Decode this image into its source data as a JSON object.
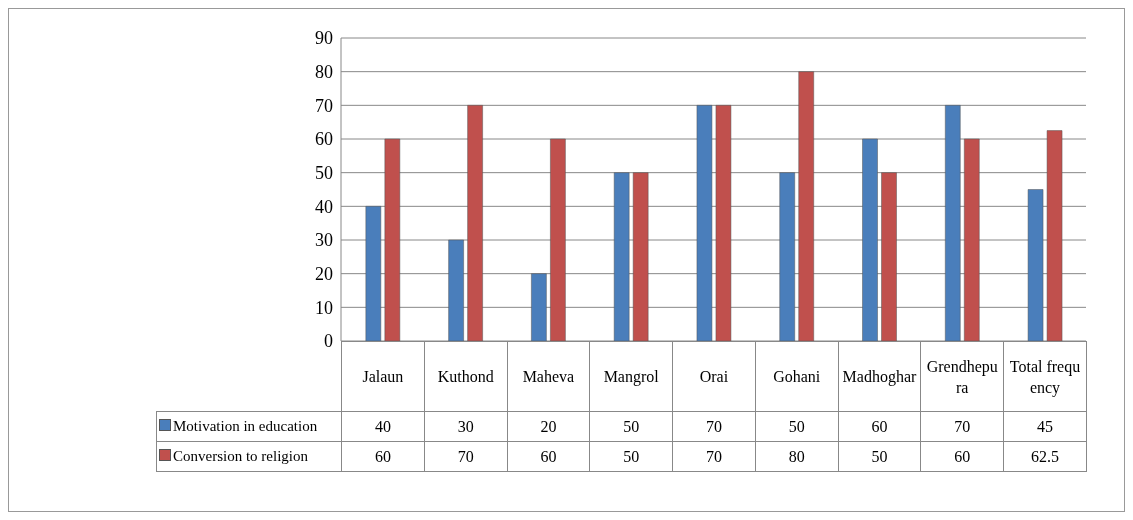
{
  "chart_data": {
    "type": "bar",
    "categories": [
      "Jalaun",
      "Kuthond",
      "Maheva",
      "Mangrol",
      "Orai",
      "Gohani",
      "Madhoghar",
      "Grendhepura",
      "Total frequency"
    ],
    "series": [
      {
        "name": "Motivation in education",
        "color": "#4a7ebb",
        "values": [
          40,
          30,
          20,
          50,
          70,
          50,
          60,
          70,
          45
        ]
      },
      {
        "name": "Conversion to religion",
        "color": "#c0504d",
        "values": [
          60,
          70,
          60,
          50,
          70,
          80,
          50,
          60,
          62.5
        ]
      }
    ],
    "ylim": [
      0,
      90
    ],
    "yticks": [
      0,
      10,
      20,
      30,
      40,
      50,
      60,
      70,
      80,
      90
    ],
    "grid": "y",
    "legend": "bottom",
    "data_labels": true
  }
}
